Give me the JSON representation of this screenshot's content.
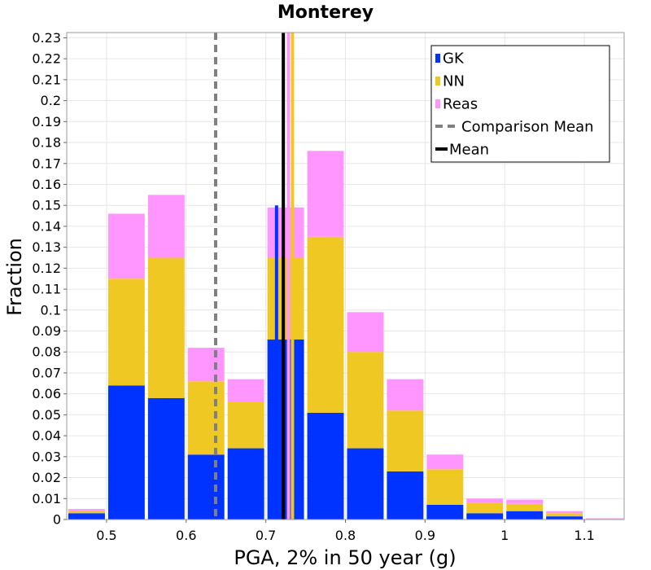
{
  "chart_data": {
    "type": "bar",
    "stacked": true,
    "title": "Monterey",
    "xlabel": "PGA, 2% in 50 year (g)",
    "ylabel": "Fraction",
    "xlim": [
      0.45,
      1.15
    ],
    "ylim": [
      0,
      0.2325
    ],
    "bin_width": 0.05,
    "x": [
      0.475,
      0.525,
      0.575,
      0.625,
      0.675,
      0.725,
      0.775,
      0.825,
      0.875,
      0.925,
      0.975,
      1.025,
      1.075,
      1.125
    ],
    "series": [
      {
        "name": "GK",
        "color": "#0033ff",
        "values": [
          0.003,
          0.064,
          0.058,
          0.031,
          0.034,
          0.086,
          0.051,
          0.034,
          0.023,
          0.007,
          0.003,
          0.004,
          0.0015,
          0.0
        ]
      },
      {
        "name": "NN",
        "color": "#f0c823",
        "values": [
          0.001,
          0.051,
          0.067,
          0.035,
          0.022,
          0.039,
          0.084,
          0.046,
          0.029,
          0.017,
          0.005,
          0.0035,
          0.0015,
          0.0
        ]
      },
      {
        "name": "Reas",
        "color": "#ff96ff",
        "values": [
          0.001,
          0.031,
          0.03,
          0.016,
          0.011,
          0.024,
          0.041,
          0.019,
          0.015,
          0.007,
          0.002,
          0.002,
          0.001,
          0.0
        ]
      }
    ],
    "vlines": [
      {
        "name": "GK mean",
        "x": 0.7135,
        "color": "#0033ff",
        "style": "solid",
        "y_top": 0.15
      },
      {
        "name": "NN mean",
        "x": 0.7335,
        "color": "#f0c823",
        "style": "solid",
        "y_top": 0.2325
      },
      {
        "name": "Reas mean",
        "x": 0.7285,
        "color": "#ff96ff",
        "style": "solid",
        "y_top": 0.2325
      },
      {
        "name": "Comparison Mean",
        "x": 0.637,
        "color": "#808080",
        "style": "dashed",
        "y_top": 0.2325
      },
      {
        "name": "Mean",
        "x": 0.722,
        "color": "#000000",
        "style": "solid",
        "y_top": 0.2325
      }
    ],
    "xticks": [
      {
        "value": 0.5,
        "label": "0.5"
      },
      {
        "value": 0.6,
        "label": "0.6"
      },
      {
        "value": 0.7,
        "label": "0.7"
      },
      {
        "value": 0.8,
        "label": "0.8"
      },
      {
        "value": 0.9,
        "label": "0.9"
      },
      {
        "value": 1.0,
        "label": "1"
      },
      {
        "value": 1.1,
        "label": "1.1"
      }
    ],
    "yticks": [
      {
        "value": 0,
        "label": "0"
      },
      {
        "value": 0.01,
        "label": "0.01"
      },
      {
        "value": 0.02,
        "label": "0.02"
      },
      {
        "value": 0.03,
        "label": "0.03"
      },
      {
        "value": 0.04,
        "label": "0.04"
      },
      {
        "value": 0.05,
        "label": "0.05"
      },
      {
        "value": 0.06,
        "label": "0.06"
      },
      {
        "value": 0.07,
        "label": "0.07"
      },
      {
        "value": 0.08,
        "label": "0.08"
      },
      {
        "value": 0.09,
        "label": "0.09"
      },
      {
        "value": 0.1,
        "label": "0.1"
      },
      {
        "value": 0.11,
        "label": "0.11"
      },
      {
        "value": 0.12,
        "label": "0.12"
      },
      {
        "value": 0.13,
        "label": "0.13"
      },
      {
        "value": 0.14,
        "label": "0.14"
      },
      {
        "value": 0.15,
        "label": "0.15"
      },
      {
        "value": 0.16,
        "label": "0.16"
      },
      {
        "value": 0.17,
        "label": "0.17"
      },
      {
        "value": 0.18,
        "label": "0.18"
      },
      {
        "value": 0.19,
        "label": "0.19"
      },
      {
        "value": 0.2,
        "label": "0.2"
      },
      {
        "value": 0.21,
        "label": "0.21"
      },
      {
        "value": 0.22,
        "label": "0.22"
      },
      {
        "value": 0.23,
        "label": "0.23"
      }
    ],
    "grid": true,
    "legend": {
      "position": "top-right",
      "items": [
        {
          "label": "GK",
          "kind": "box",
          "color": "#0033ff"
        },
        {
          "label": "NN",
          "kind": "box",
          "color": "#f0c823"
        },
        {
          "label": "Reas",
          "kind": "box",
          "color": "#ff96ff"
        },
        {
          "label": "Comparison Mean",
          "kind": "dashed-line",
          "color": "#808080"
        },
        {
          "label": "Mean",
          "kind": "line",
          "color": "#000000"
        }
      ]
    }
  }
}
